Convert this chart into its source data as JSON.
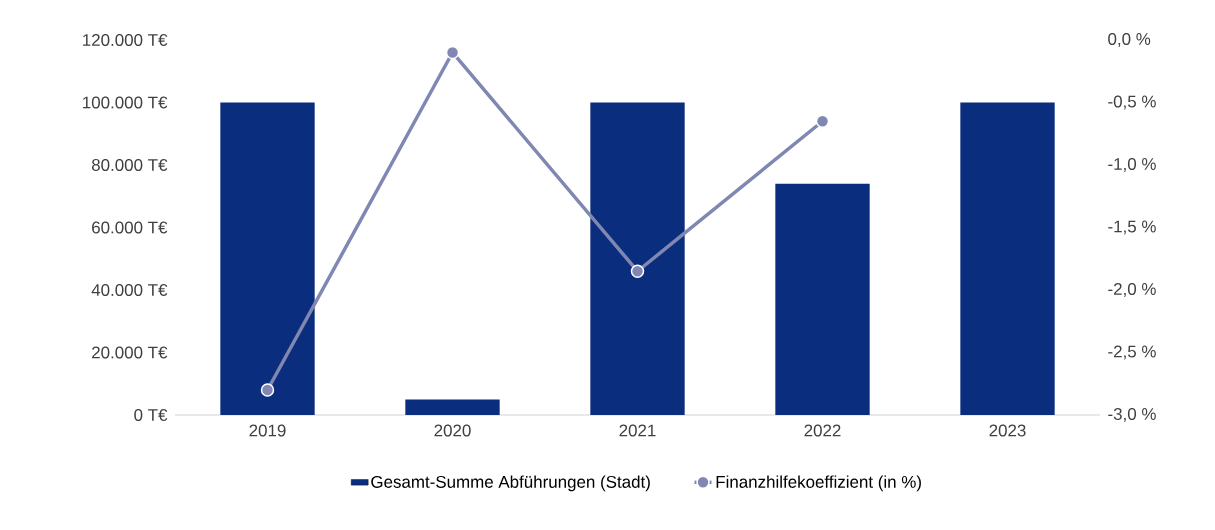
{
  "chart_data": {
    "type": "bar",
    "categories": [
      "2019",
      "2020",
      "2021",
      "2022",
      "2023"
    ],
    "series": [
      {
        "name": "Gesamt-Summe Abführungen (Stadt)",
        "color": "#0b2d7e",
        "values": [
          100000,
          5000,
          100000,
          74000,
          100000
        ]
      },
      {
        "name": "Finanzhilfekoeffizient (in %)",
        "type": "line",
        "axis": "y2",
        "color": "#7f87b2",
        "values": [
          -2.8,
          -0.1,
          -1.85,
          -0.65,
          null
        ]
      }
    ],
    "ylim": [
      0,
      120000
    ],
    "yticks": [
      {
        "value": 0,
        "label": "0 T€"
      },
      {
        "value": 20000,
        "label": "20.000 T€"
      },
      {
        "value": 40000,
        "label": "40.000 T€"
      },
      {
        "value": 60000,
        "label": "60.000 T€"
      },
      {
        "value": 80000,
        "label": "80.000 T€"
      },
      {
        "value": 100000,
        "label": "100.000 T€"
      },
      {
        "value": 120000,
        "label": "120.000 T€"
      }
    ],
    "y2lim": [
      -3.0,
      0.0
    ],
    "y2ticks": [
      {
        "value": -3.0,
        "label": "-3,0 %"
      },
      {
        "value": -2.5,
        "label": "-2,5 %"
      },
      {
        "value": -2.0,
        "label": "-2,0 %"
      },
      {
        "value": -1.5,
        "label": "-1,5 %"
      },
      {
        "value": -1.0,
        "label": "-1,0 %"
      },
      {
        "value": -0.5,
        "label": "-0,5 %"
      },
      {
        "value": 0.0,
        "label": "0,0 %"
      }
    ],
    "marker": "circle",
    "legend": "bottom"
  }
}
